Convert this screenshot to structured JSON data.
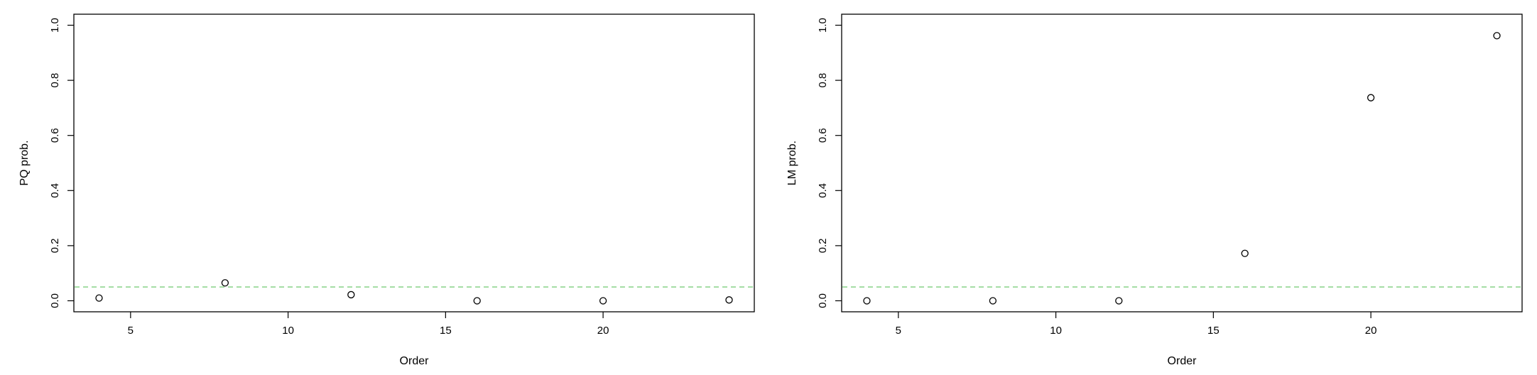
{
  "chart_data": [
    {
      "type": "scatter",
      "xlabel": "Order",
      "ylabel": "PQ prob.",
      "xlim": [
        3.2,
        24.8
      ],
      "ylim": [
        -0.04,
        1.04
      ],
      "xticks": [
        5,
        10,
        15,
        20
      ],
      "xtick_labels": [
        "5",
        "10",
        "15",
        "20"
      ],
      "yticks": [
        0,
        0.2,
        0.4,
        0.6,
        0.8,
        1
      ],
      "ytick_labels": [
        "0.0",
        "0.2",
        "0.4",
        "0.6",
        "0.8",
        "1.0"
      ],
      "x": [
        4,
        8,
        12,
        16,
        20,
        24
      ],
      "y": [
        0.01,
        0.065,
        0.022,
        0.0,
        0.0,
        0.003
      ],
      "reference_line": {
        "y": 0.05,
        "style": "dashed",
        "color": "#7ccd7c"
      },
      "point_color": "#000000",
      "grid": false
    },
    {
      "type": "scatter",
      "xlabel": "Order",
      "ylabel": "LM prob.",
      "xlim": [
        3.2,
        24.8
      ],
      "ylim": [
        -0.04,
        1.04
      ],
      "xticks": [
        5,
        10,
        15,
        20
      ],
      "xtick_labels": [
        "5",
        "10",
        "15",
        "20"
      ],
      "yticks": [
        0,
        0.2,
        0.4,
        0.6,
        0.8,
        1
      ],
      "ytick_labels": [
        "0.0",
        "0.2",
        "0.4",
        "0.6",
        "0.8",
        "1.0"
      ],
      "x": [
        4,
        8,
        12,
        16,
        20,
        24
      ],
      "y": [
        0.0,
        0.0,
        0.0,
        0.172,
        0.737,
        0.962
      ],
      "reference_line": {
        "y": 0.05,
        "style": "dashed",
        "color": "#7ccd7c"
      },
      "point_color": "#000000",
      "grid": false
    }
  ]
}
